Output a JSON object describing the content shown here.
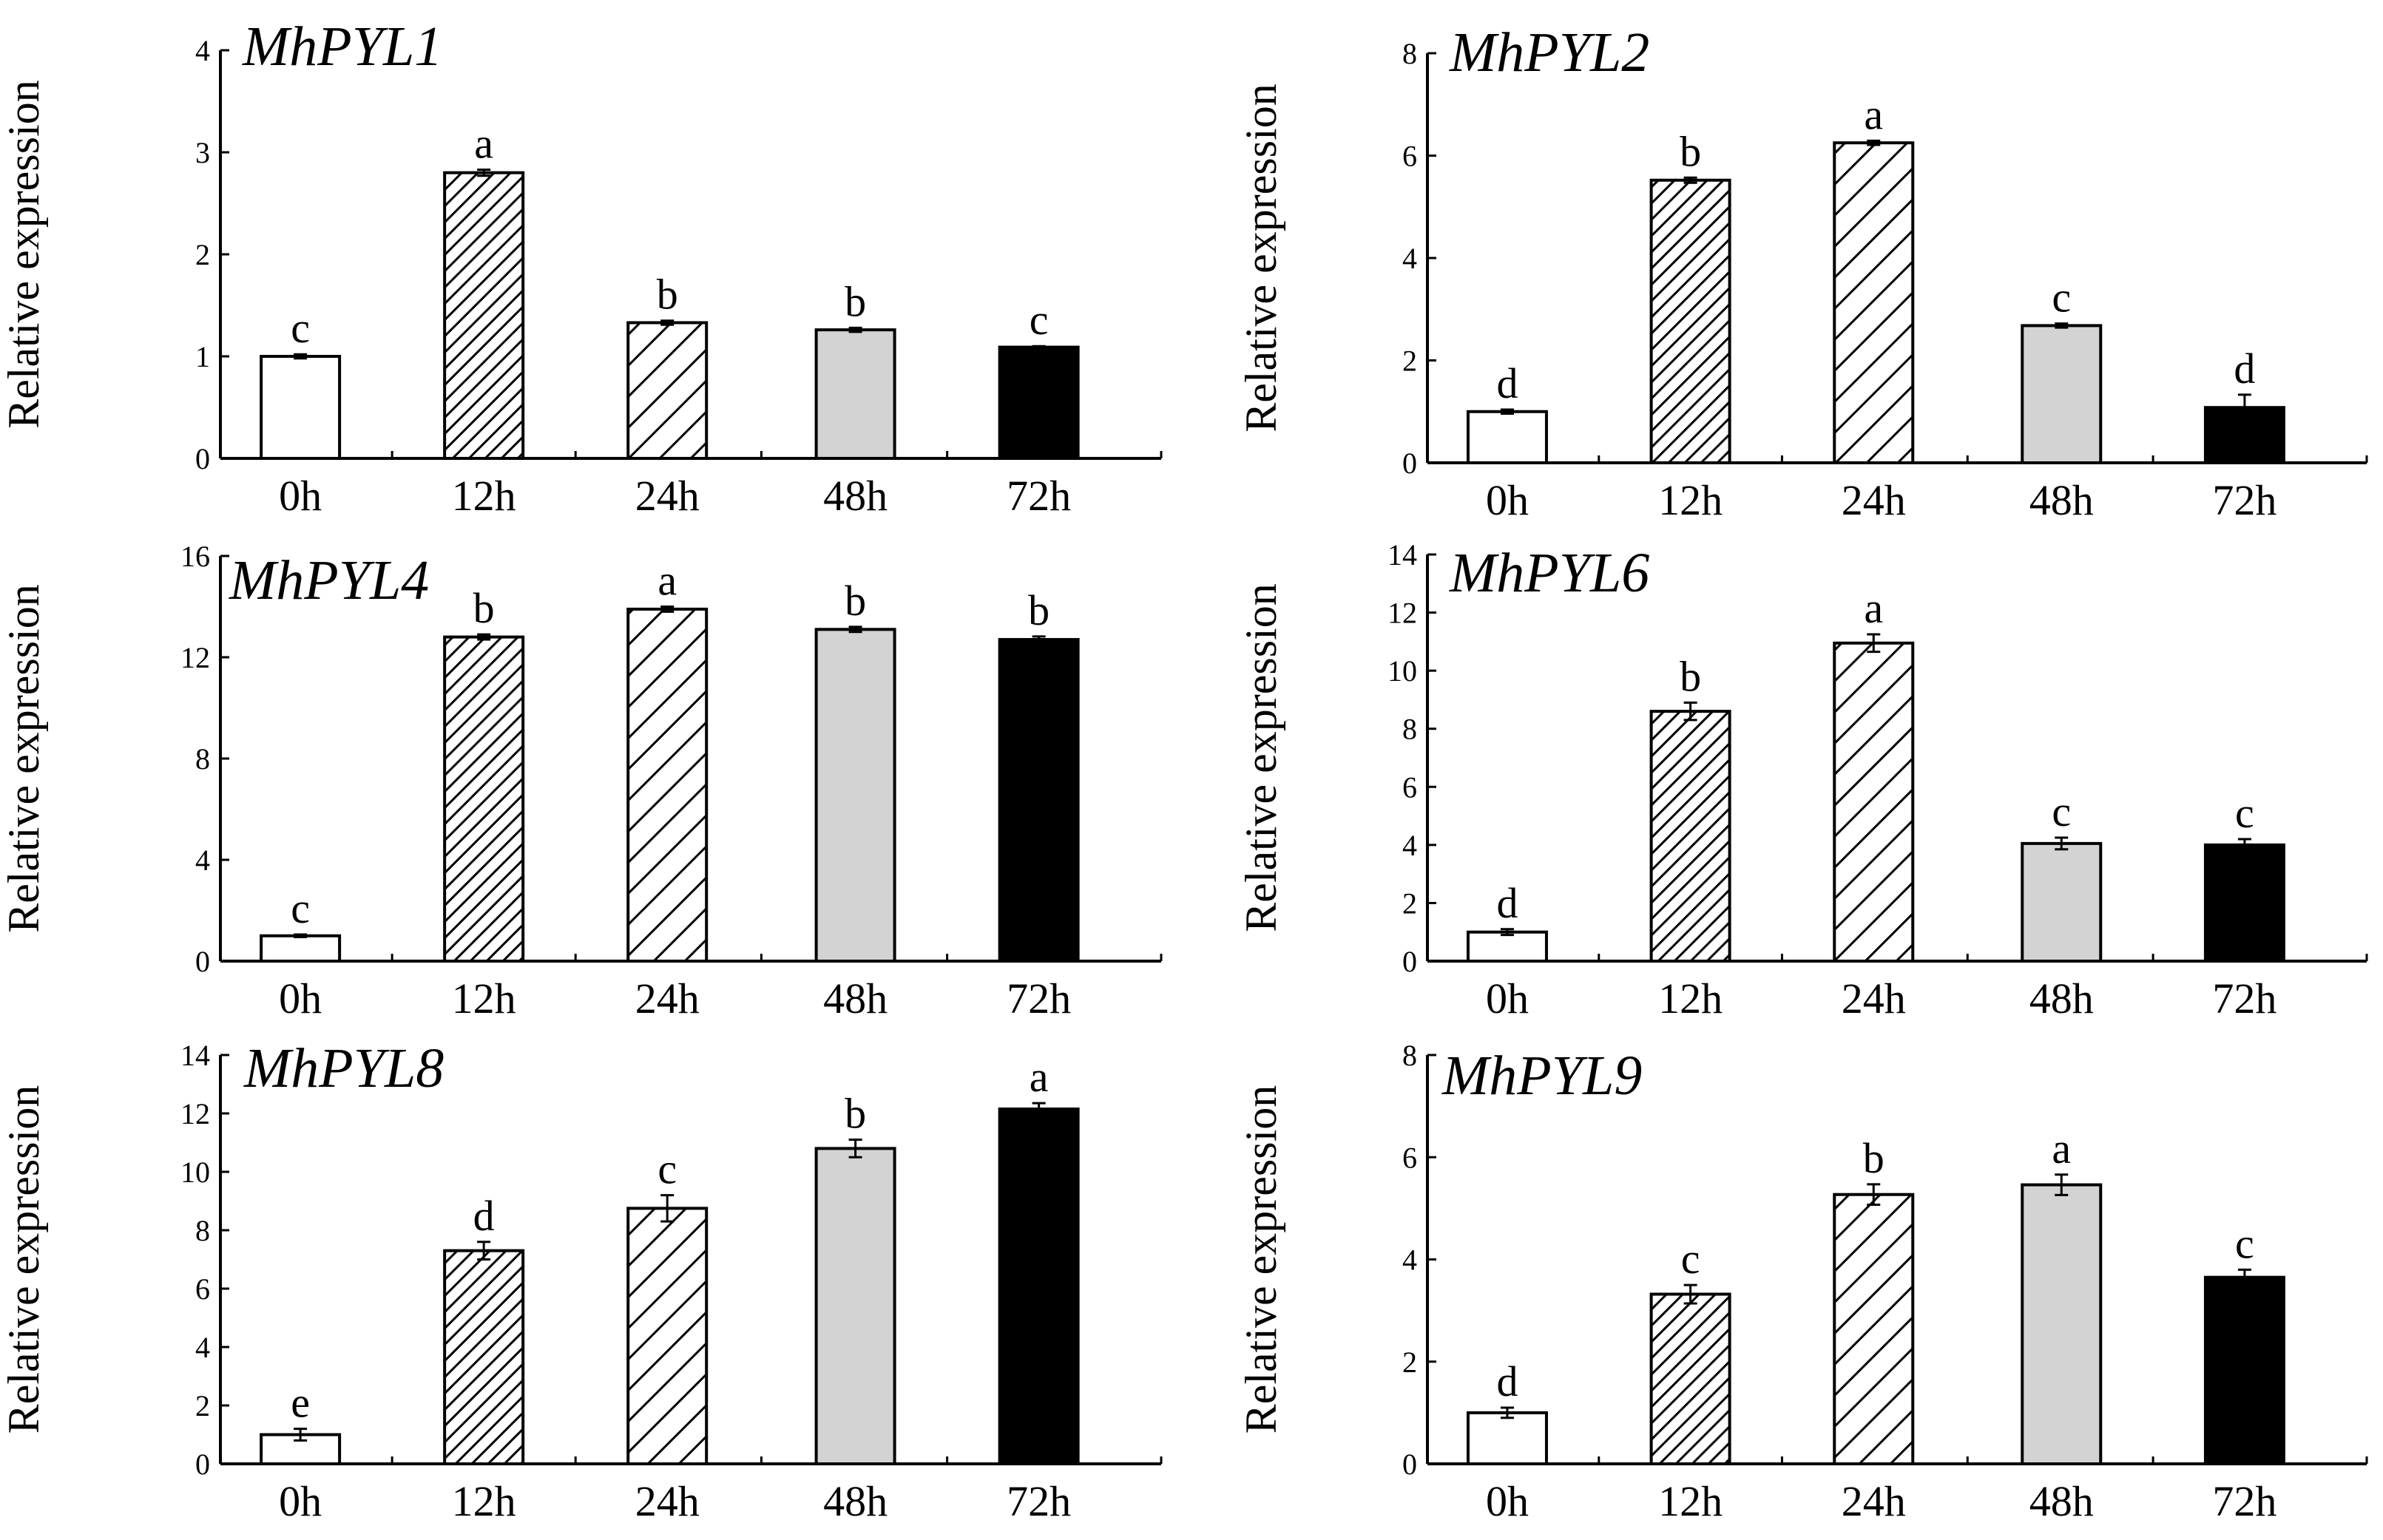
{
  "figure": {
    "colors": {
      "0h": "#ffffff",
      "12h": "hatch-dense",
      "24h": "hatch-sparse",
      "48h": "#d3d3d3",
      "72h": "#000000",
      "stroke": "#000000"
    }
  },
  "chart_data": [
    {
      "type": "bar",
      "title": "MhPYL1",
      "ylabel": "Relative expression",
      "categories": [
        "0h",
        "12h",
        "24h",
        "48h",
        "72h"
      ],
      "values": [
        1.0,
        2.8,
        1.33,
        1.26,
        1.09
      ],
      "errors": [
        0.02,
        0.03,
        0.02,
        0.02,
        0.01
      ],
      "labels": [
        "c",
        "a",
        "b",
        "b",
        "c"
      ],
      "ylim": [
        0,
        4
      ],
      "yticks": [
        0,
        1,
        2,
        3,
        4
      ]
    },
    {
      "type": "bar",
      "title": "MhPYL2",
      "ylabel": "Relative expression",
      "categories": [
        "0h",
        "12h",
        "24h",
        "48h",
        "72h"
      ],
      "values": [
        1.0,
        5.52,
        6.25,
        2.68,
        1.08
      ],
      "errors": [
        0.04,
        0.05,
        0.04,
        0.04,
        0.25
      ],
      "labels": [
        "d",
        "b",
        "a",
        "c",
        "d"
      ],
      "ylim": [
        0,
        8
      ],
      "yticks": [
        0,
        2,
        4,
        6,
        8
      ]
    },
    {
      "type": "bar",
      "title": "MhPYL4",
      "ylabel": "Relative expression",
      "categories": [
        "0h",
        "12h",
        "24h",
        "48h",
        "72h"
      ],
      "values": [
        1.0,
        12.8,
        13.9,
        13.1,
        12.7
      ],
      "errors": [
        0.05,
        0.1,
        0.1,
        0.1,
        0.12
      ],
      "labels": [
        "c",
        "b",
        "a",
        "b",
        "b"
      ],
      "ylim": [
        0,
        16
      ],
      "yticks": [
        0,
        4,
        8,
        12,
        16
      ]
    },
    {
      "type": "bar",
      "title": "MhPYL6",
      "ylabel": "Relative expression",
      "categories": [
        "0h",
        "12h",
        "24h",
        "48h",
        "72h"
      ],
      "values": [
        1.0,
        8.6,
        10.95,
        4.05,
        4.0
      ],
      "errors": [
        0.1,
        0.3,
        0.3,
        0.2,
        0.2
      ],
      "labels": [
        "d",
        "b",
        "a",
        "c",
        "c"
      ],
      "ylim": [
        0,
        14
      ],
      "yticks": [
        0,
        2,
        4,
        6,
        8,
        10,
        12,
        14
      ]
    },
    {
      "type": "bar",
      "title": "MhPYL8",
      "ylabel": "Relative expression",
      "categories": [
        "0h",
        "12h",
        "24h",
        "48h",
        "72h"
      ],
      "values": [
        1.0,
        7.3,
        8.75,
        10.8,
        12.15
      ],
      "errors": [
        0.2,
        0.3,
        0.45,
        0.3,
        0.2
      ],
      "labels": [
        "e",
        "d",
        "c",
        "b",
        "a"
      ],
      "ylim": [
        0,
        14
      ],
      "yticks": [
        0,
        2,
        4,
        6,
        8,
        10,
        12,
        14
      ]
    },
    {
      "type": "bar",
      "title": "MhPYL9",
      "ylabel": "Relative expression",
      "categories": [
        "0h",
        "12h",
        "24h",
        "48h",
        "72h"
      ],
      "values": [
        1.0,
        3.32,
        5.27,
        5.46,
        3.65
      ],
      "errors": [
        0.1,
        0.18,
        0.2,
        0.2,
        0.15
      ],
      "labels": [
        "d",
        "c",
        "b",
        "a",
        "c"
      ],
      "ylim": [
        0,
        8
      ],
      "yticks": [
        0,
        2,
        4,
        6,
        8
      ]
    }
  ]
}
